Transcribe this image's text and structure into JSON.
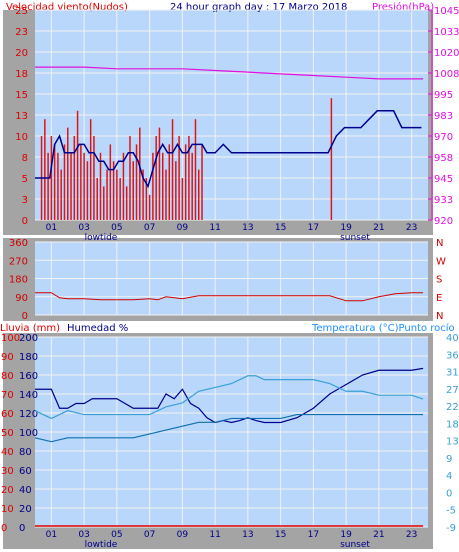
{
  "header": {
    "wind_label": "Velocidad viento(Nudos)",
    "title": "24 hour graph day : 17 Marzo 2018",
    "pressure_label": "Presión(hPa)"
  },
  "lower_header": {
    "rain_label": "Lluvia (mm)",
    "humidity_label": "Humedad %",
    "temp_label": "Temperatura (°C)Punto rocío"
  },
  "x_ticks": [
    "01",
    "03",
    "05",
    "07",
    "09",
    "11",
    "13",
    "15",
    "17",
    "19",
    "21",
    "23"
  ],
  "x_markers": {
    "lowtide": "lowtide",
    "sunset": "sunset"
  },
  "colors": {
    "frame": "#a4a4a4",
    "plot_bg": "#b9d7fb",
    "grid": "#f2f2f2",
    "wind_gust": "#e00000",
    "wind_avg": "#00008b",
    "pressure": "#e010e0",
    "direction": "#d00000",
    "humidity": "#00008b",
    "temperature": "#3aa0d8",
    "dew_point": "#1070b0",
    "rain": "#e00000"
  },
  "chart_data": [
    {
      "type": "line",
      "title": "24 hour graph day : 17 Marzo 2018",
      "ylabel": "Velocidad viento(Nudos)",
      "ylabel2": "Presión(hPa)",
      "xlim": [
        0,
        24
      ],
      "ylim": [
        0,
        25
      ],
      "ylim2": [
        920,
        1045
      ],
      "y_ticks": [
        "0",
        "3",
        "5",
        "8",
        "10",
        "13",
        "15",
        "18",
        "20",
        "23",
        "25"
      ],
      "y2_ticks": [
        "920",
        "933",
        "945",
        "958",
        "970",
        "983",
        "995",
        "1008",
        "1020",
        "1033",
        "1045"
      ],
      "series": [
        {
          "name": "Velocidad viento(Nudos)",
          "kind": "bars",
          "x": [
            0.4,
            0.6,
            0.8,
            1.0,
            1.2,
            1.4,
            1.6,
            1.8,
            2.0,
            2.2,
            2.4,
            2.6,
            2.8,
            3.0,
            3.2,
            3.4,
            3.6,
            3.8,
            4.0,
            4.2,
            4.4,
            4.6,
            4.8,
            5.0,
            5.2,
            5.4,
            5.6,
            5.8,
            6.0,
            6.2,
            6.4,
            6.6,
            6.8,
            7.0,
            7.2,
            7.4,
            7.6,
            7.8,
            8.0,
            8.2,
            8.4,
            8.6,
            8.8,
            9.0,
            9.2,
            9.4,
            9.6,
            9.8,
            10.0,
            10.2,
            18.1
          ],
          "values": [
            10,
            12,
            8,
            10,
            9,
            8,
            6,
            9,
            11,
            8,
            10,
            13,
            9,
            8,
            7,
            12,
            10,
            5,
            8,
            4,
            6,
            9,
            7,
            6,
            5,
            8,
            4,
            10,
            7,
            9,
            11,
            6,
            5,
            3,
            8,
            10,
            11,
            8,
            6,
            9,
            12,
            7,
            10,
            5,
            9,
            10,
            8,
            12,
            6,
            9,
            14.5
          ]
        },
        {
          "name": "Media viento",
          "kind": "line",
          "x": [
            0.0,
            0.5,
            0.9,
            1.2,
            1.5,
            1.8,
            2.1,
            2.4,
            2.7,
            3.0,
            3.3,
            3.6,
            3.9,
            4.2,
            4.5,
            4.8,
            5.1,
            5.4,
            5.7,
            6.0,
            6.3,
            6.6,
            6.9,
            7.2,
            7.5,
            7.8,
            8.1,
            8.4,
            8.7,
            9.0,
            9.3,
            9.6,
            9.9,
            10.2,
            10.5,
            11.0,
            11.5,
            12.0,
            17.9,
            18.4,
            18.9,
            19.4,
            19.9,
            20.4,
            20.9,
            21.4,
            21.9,
            22.4,
            23.0,
            23.6
          ],
          "values": [
            5,
            5,
            5,
            9,
            10,
            8,
            8,
            8,
            9,
            9,
            8,
            8,
            7,
            7,
            6,
            6,
            7,
            7,
            8,
            8,
            7,
            5,
            4,
            6,
            8,
            9,
            8,
            8,
            9,
            8,
            8,
            9,
            9,
            9,
            8,
            8,
            9,
            8,
            8,
            10,
            11,
            11,
            11,
            12,
            13,
            13,
            13,
            11,
            11,
            11
          ]
        },
        {
          "name": "Presión(hPa)",
          "kind": "line",
          "axis": "right",
          "x": [
            0,
            3,
            5,
            7,
            9,
            11,
            13,
            15,
            17,
            19,
            21,
            23,
            23.7
          ],
          "values": [
            1011,
            1011,
            1010,
            1010,
            1010,
            1009,
            1008,
            1007,
            1006,
            1005,
            1004,
            1004,
            1004
          ]
        }
      ]
    },
    {
      "type": "line",
      "ylabel_ticks": [
        "N",
        "E",
        "S",
        "W",
        "N"
      ],
      "xlim": [
        0,
        24
      ],
      "ylim": [
        0,
        360
      ],
      "y_ticks": [
        "0",
        "90",
        "180",
        "270",
        "360"
      ],
      "series": [
        {
          "name": "Dirección viento",
          "x": [
            0,
            1,
            1.5,
            2,
            3,
            4,
            5,
            6,
            7,
            7.5,
            8,
            9,
            10,
            11,
            13,
            15,
            17,
            18,
            19,
            20,
            21,
            22,
            23,
            23.7
          ],
          "values": [
            110,
            110,
            85,
            80,
            80,
            75,
            75,
            75,
            80,
            75,
            90,
            80,
            95,
            95,
            95,
            95,
            95,
            95,
            70,
            70,
            90,
            105,
            110,
            110
          ]
        }
      ]
    },
    {
      "type": "line",
      "xlim": [
        0,
        24
      ],
      "ylim": [
        0,
        100
      ],
      "y_ticks": [
        "0",
        "10",
        "20",
        "30",
        "40",
        "50",
        "60",
        "70",
        "80",
        "90",
        "100"
      ],
      "ylim_humidity": [
        0,
        200
      ],
      "y_ticks_humidity": [
        "0",
        "20",
        "40",
        "60",
        "80",
        "100",
        "120",
        "140",
        "160",
        "180",
        "200"
      ],
      "ylim_temp": [
        -9,
        40
      ],
      "y_ticks_temp": [
        "-9",
        "-5",
        "0",
        "4",
        "9",
        "13",
        "18",
        "22",
        "27",
        "31",
        "36",
        "40"
      ],
      "series": [
        {
          "name": "Humedad %",
          "axis": "humidity",
          "x": [
            0,
            1,
            1.5,
            2,
            2.5,
            3,
            3.5,
            4,
            4.5,
            5,
            5.5,
            6,
            6.5,
            7,
            7.5,
            8,
            8.5,
            9,
            9.5,
            10,
            10.5,
            11,
            11.5,
            12,
            12.5,
            13,
            13.5,
            14,
            14.5,
            15,
            16,
            17,
            18,
            19,
            20,
            21,
            22,
            23,
            23.7
          ],
          "values": [
            145,
            145,
            125,
            125,
            130,
            130,
            135,
            135,
            135,
            135,
            130,
            125,
            125,
            125,
            125,
            140,
            135,
            145,
            130,
            125,
            115,
            110,
            112,
            110,
            112,
            115,
            112,
            110,
            110,
            110,
            115,
            125,
            140,
            150,
            160,
            165,
            165,
            165,
            167
          ]
        },
        {
          "name": "Temperatura (°C)",
          "axis": "temp",
          "x": [
            0,
            1,
            2,
            3,
            4,
            5,
            6,
            7,
            8,
            9,
            10,
            11,
            12,
            12.5,
            13,
            13.5,
            14,
            15,
            16,
            17,
            18,
            19,
            20,
            21,
            22,
            23,
            23.7
          ],
          "values": [
            21,
            19,
            21,
            20,
            20,
            20,
            20,
            20,
            22,
            23,
            26,
            27,
            28,
            29,
            30,
            30,
            29,
            29,
            29,
            29,
            28,
            26,
            26,
            25,
            25,
            25,
            24
          ]
        },
        {
          "name": "Punto rocío",
          "axis": "temp",
          "x": [
            0,
            1,
            2,
            3,
            4,
            5,
            6,
            7,
            8,
            9,
            10,
            11,
            12,
            13,
            14,
            15,
            16,
            17,
            18,
            19,
            20,
            21,
            22,
            23,
            23.7
          ],
          "values": [
            14,
            13,
            14,
            14,
            14,
            14,
            14,
            15,
            16,
            17,
            18,
            18,
            19,
            19,
            19,
            19,
            20,
            20,
            20,
            20,
            20,
            20,
            20,
            20,
            20
          ]
        },
        {
          "name": "Lluvia (mm)",
          "axis": "rain",
          "x": [
            0,
            23.7
          ],
          "values": [
            0,
            0
          ]
        }
      ]
    }
  ]
}
